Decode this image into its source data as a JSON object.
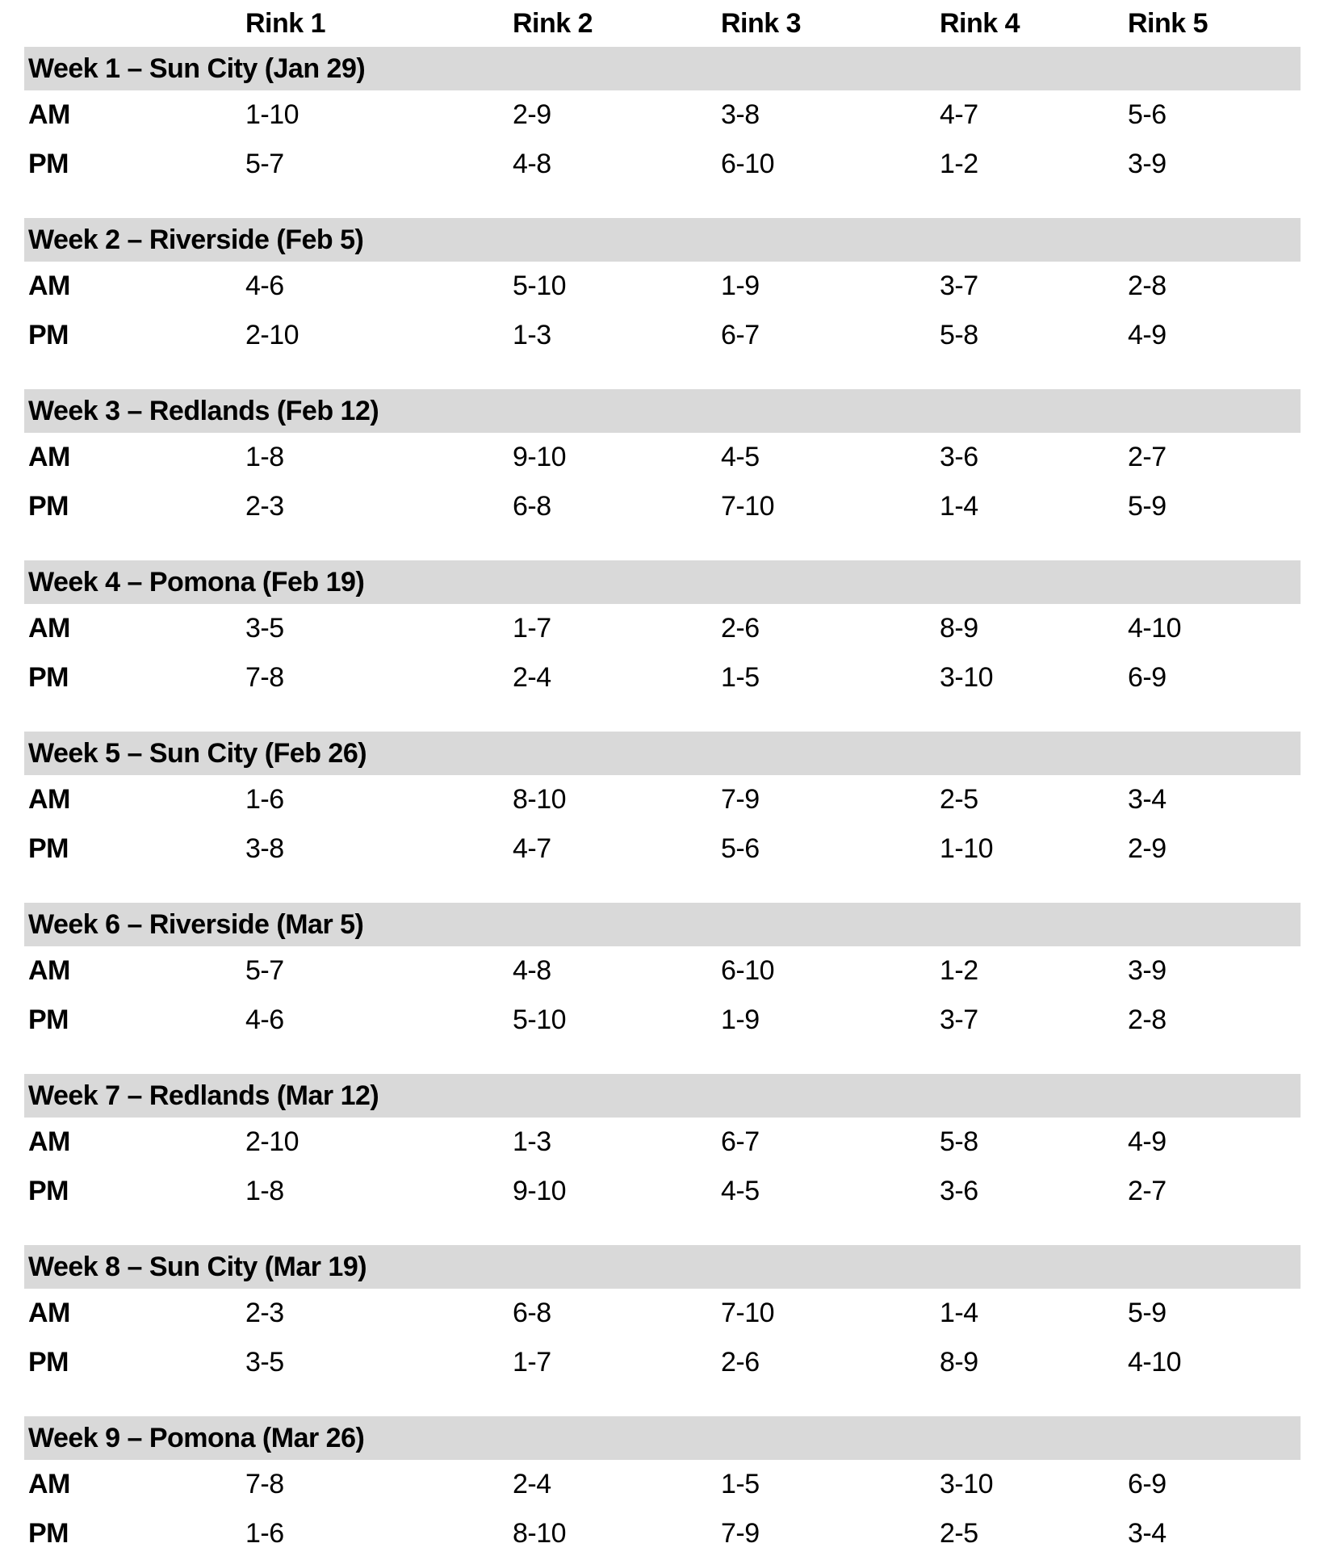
{
  "table": {
    "column_headers": [
      "Rink 1",
      "Rink 2",
      "Rink 3",
      "Rink 4",
      "Rink 5"
    ],
    "row_labels": {
      "am": "AM",
      "pm": "PM"
    },
    "weeks": [
      {
        "title": "Week 1 – Sun City (Jan 29)",
        "am": [
          "1-10",
          "2-9",
          "3-8",
          "4-7",
          "5-6"
        ],
        "pm": [
          "5-7",
          "4-8",
          "6-10",
          "1-2",
          "3-9"
        ]
      },
      {
        "title": "Week 2 – Riverside (Feb 5)",
        "am": [
          "4-6",
          "5-10",
          "1-9",
          "3-7",
          "2-8"
        ],
        "pm": [
          "2-10",
          "1-3",
          "6-7",
          "5-8",
          "4-9"
        ]
      },
      {
        "title": "Week 3 – Redlands (Feb 12)",
        "am": [
          "1-8",
          "9-10",
          "4-5",
          "3-6",
          "2-7"
        ],
        "pm": [
          "2-3",
          "6-8",
          "7-10",
          "1-4",
          "5-9"
        ]
      },
      {
        "title": "Week 4 – Pomona (Feb 19)",
        "am": [
          "3-5",
          "1-7",
          "2-6",
          "8-9",
          "4-10"
        ],
        "pm": [
          "7-8",
          "2-4",
          "1-5",
          "3-10",
          "6-9"
        ]
      },
      {
        "title": "Week 5 – Sun City (Feb 26)",
        "am": [
          "1-6",
          "8-10",
          "7-9",
          "2-5",
          "3-4"
        ],
        "pm": [
          "3-8",
          "4-7",
          "5-6",
          "1-10",
          "2-9"
        ]
      },
      {
        "title": "Week 6 – Riverside (Mar 5)",
        "am": [
          "5-7",
          "4-8",
          "6-10",
          "1-2",
          "3-9"
        ],
        "pm": [
          "4-6",
          "5-10",
          "1-9",
          "3-7",
          "2-8"
        ]
      },
      {
        "title": "Week 7 – Redlands (Mar 12)",
        "am": [
          "2-10",
          "1-3",
          "6-7",
          "5-8",
          "4-9"
        ],
        "pm": [
          "1-8",
          "9-10",
          "4-5",
          "3-6",
          "2-7"
        ]
      },
      {
        "title": "Week 8 – Sun City (Mar 19)",
        "am": [
          "2-3",
          "6-8",
          "7-10",
          "1-4",
          "5-9"
        ],
        "pm": [
          "3-5",
          "1-7",
          "2-6",
          "8-9",
          "4-10"
        ]
      },
      {
        "title": "Week 9 – Pomona (Mar 26)",
        "am": [
          "7-8",
          "2-4",
          "1-5",
          "3-10",
          "6-9"
        ],
        "pm": [
          "1-6",
          "8-10",
          "7-9",
          "2-5",
          "3-4"
        ]
      }
    ]
  },
  "colors": {
    "band_background": "#d9d9d9",
    "text": "#000000",
    "page_background": "#ffffff"
  }
}
